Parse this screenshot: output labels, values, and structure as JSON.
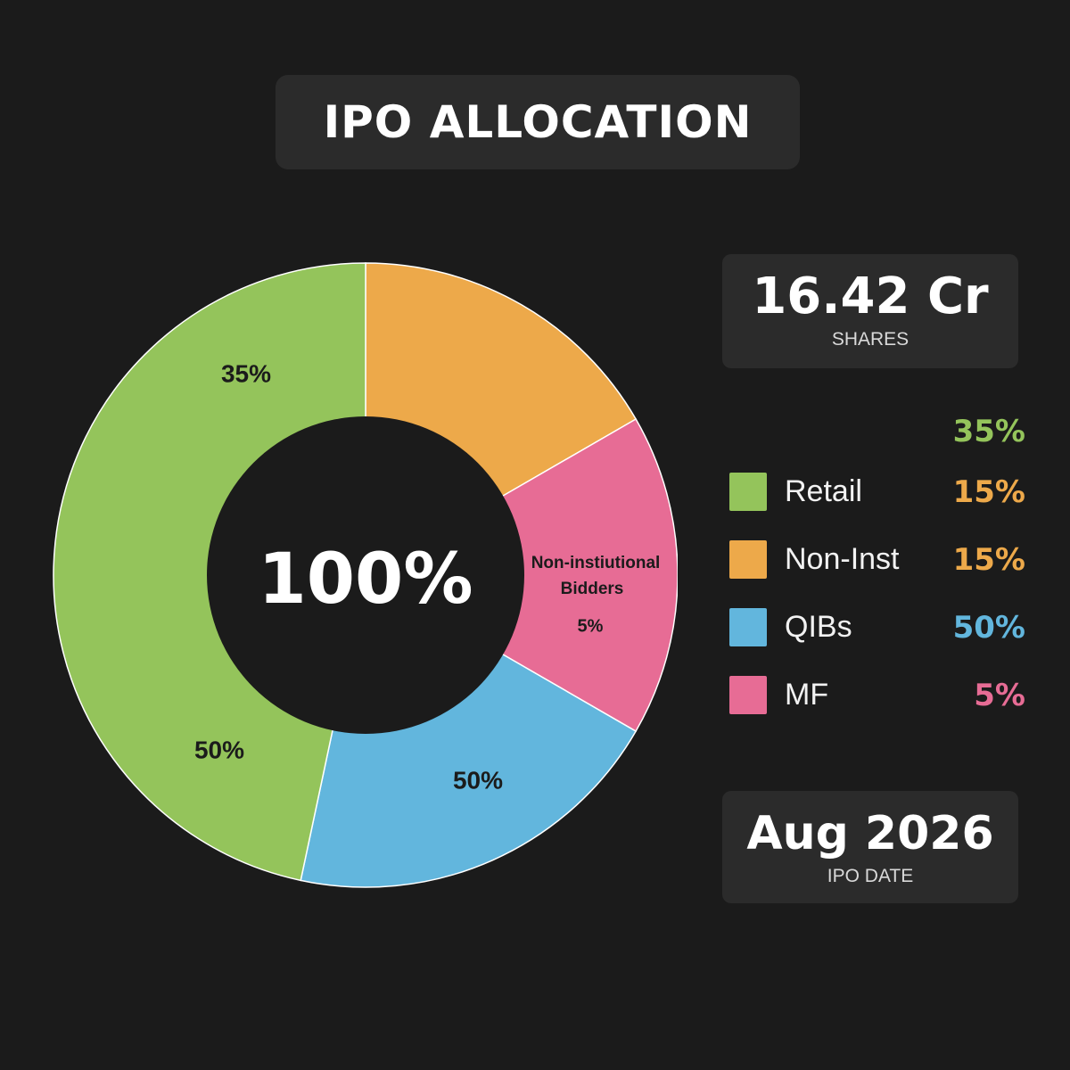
{
  "title": "IPO ALLOCATION",
  "shares": {
    "value": "16.42 Cr",
    "label": "SHARES"
  },
  "ipo_date": {
    "value": "Aug 2026",
    "label": "IPO DATE"
  },
  "legend_top_pct": "35%",
  "legend": [
    {
      "label": "Retail",
      "value": "15%",
      "color": "#94c45b",
      "value_color": "#eda94a"
    },
    {
      "label": "Non-Inst",
      "value": "15%",
      "color": "#eda94a",
      "value_color": "#eda94a"
    },
    {
      "label": "QIBs",
      "value": "50%",
      "value_color": "#62b6dd",
      "color": "#62b6dd"
    },
    {
      "label": "MF",
      "value": "5%",
      "color": "#e76c95",
      "value_color": "#e76c95"
    }
  ],
  "legend_top_pct_color": "#94c45b",
  "chart_data": {
    "type": "pie",
    "donut": true,
    "center_label": "100%",
    "slices": [
      {
        "value": 0.1667,
        "color": "#eda94a",
        "labels": []
      },
      {
        "value": 0.1667,
        "color": "#e76c95",
        "labels": [
          "Non-instiutional",
          "Bidders",
          "5%"
        ]
      },
      {
        "value": 0.2,
        "color": "#62b6dd",
        "labels": [
          "50%"
        ]
      },
      {
        "value": 0.4667,
        "color": "#94c45b",
        "labels": [
          "35%",
          "50%"
        ]
      }
    ]
  }
}
